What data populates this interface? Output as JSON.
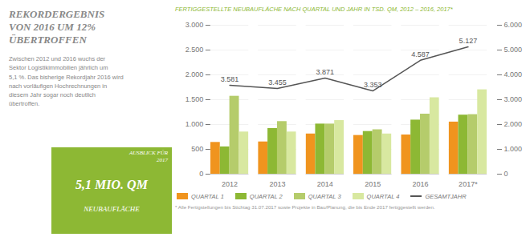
{
  "chart_data": {
    "type": "bar",
    "title": "FERTIGGESTELLTE NEUBAUFLÄCHE NACH QUARTAL UND JAHR IN TSD. QM, 2012 – 2016, 2017*",
    "categories": [
      "2012",
      "2013",
      "2014",
      "2015",
      "2016",
      "2017*"
    ],
    "series": [
      {
        "name": "QUARTAL 1",
        "color": "#f0941e",
        "values": [
          640,
          650,
          810,
          780,
          790,
          1050
        ]
      },
      {
        "name": "QUARTAL 2",
        "color": "#8db834",
        "values": [
          550,
          920,
          1010,
          860,
          1090,
          1190
        ]
      },
      {
        "name": "QUARTAL 3",
        "color": "#b5cc6b",
        "values": [
          1570,
          1060,
          1010,
          895,
          1210,
          1200
        ]
      },
      {
        "name": "QUARTAL 4",
        "color": "#d8e8a0",
        "values": [
          850,
          850,
          1080,
          810,
          1540,
          1700
        ]
      },
      {
        "name": "GESAMTJAHR",
        "type": "line",
        "axis": "y2",
        "color": "#555555",
        "values": [
          3581,
          3455,
          3871,
          3353,
          4587,
          5127
        ],
        "value_labels": [
          "3.581",
          "3.455",
          "3.871",
          "3.353",
          "4.587",
          "5.127"
        ],
        "data_labels": true
      }
    ],
    "ylim": [
      0,
      3000
    ],
    "yticks": [
      0,
      500,
      {
        "value": 1000,
        "label": "1.000"
      },
      {
        "value": 1500,
        "label": "1.500"
      },
      {
        "value": 2000,
        "label": "2.000"
      },
      {
        "value": 2500,
        "label": "2.500"
      },
      {
        "value": 3000,
        "label": "3.000"
      }
    ],
    "y2lim": [
      0,
      6000
    ],
    "y2ticks": [
      0,
      {
        "value": 1000,
        "label": "1.000"
      },
      {
        "value": 2000,
        "label": "2.000"
      },
      {
        "value": 3000,
        "label": "3.000"
      },
      {
        "value": 4000,
        "label": "4.000"
      },
      {
        "value": 5000,
        "label": "5.000"
      },
      {
        "value": 6000,
        "label": "6.000"
      }
    ],
    "grid": true,
    "legend": "bottom",
    "annotations": [
      "REKORDERGEBNIS",
      "VON 2016 UM 12%",
      "ÜBERTROFFEN",
      "Zwischen 2012 und 2016 wuchs der\nSektor Logistikimmobilien jährlich um\n5,1 %. Das bisherige Rekordjahr 2016 wird\nnach vorläufigen Hochrechnungen in\ndiesem Jahr sogar noch deutlich\nübertroffen.",
      "AUSBLICK FÜR\n2017",
      "5,1 MIO. QM",
      "NEUBAUFLÄCHE",
      "* Alle Fertigstellungen bis Stichtag 31.07.2017 sowie Projekte in Bau/Planung, die bis Ende 2017 fertiggestellt werden."
    ]
  }
}
